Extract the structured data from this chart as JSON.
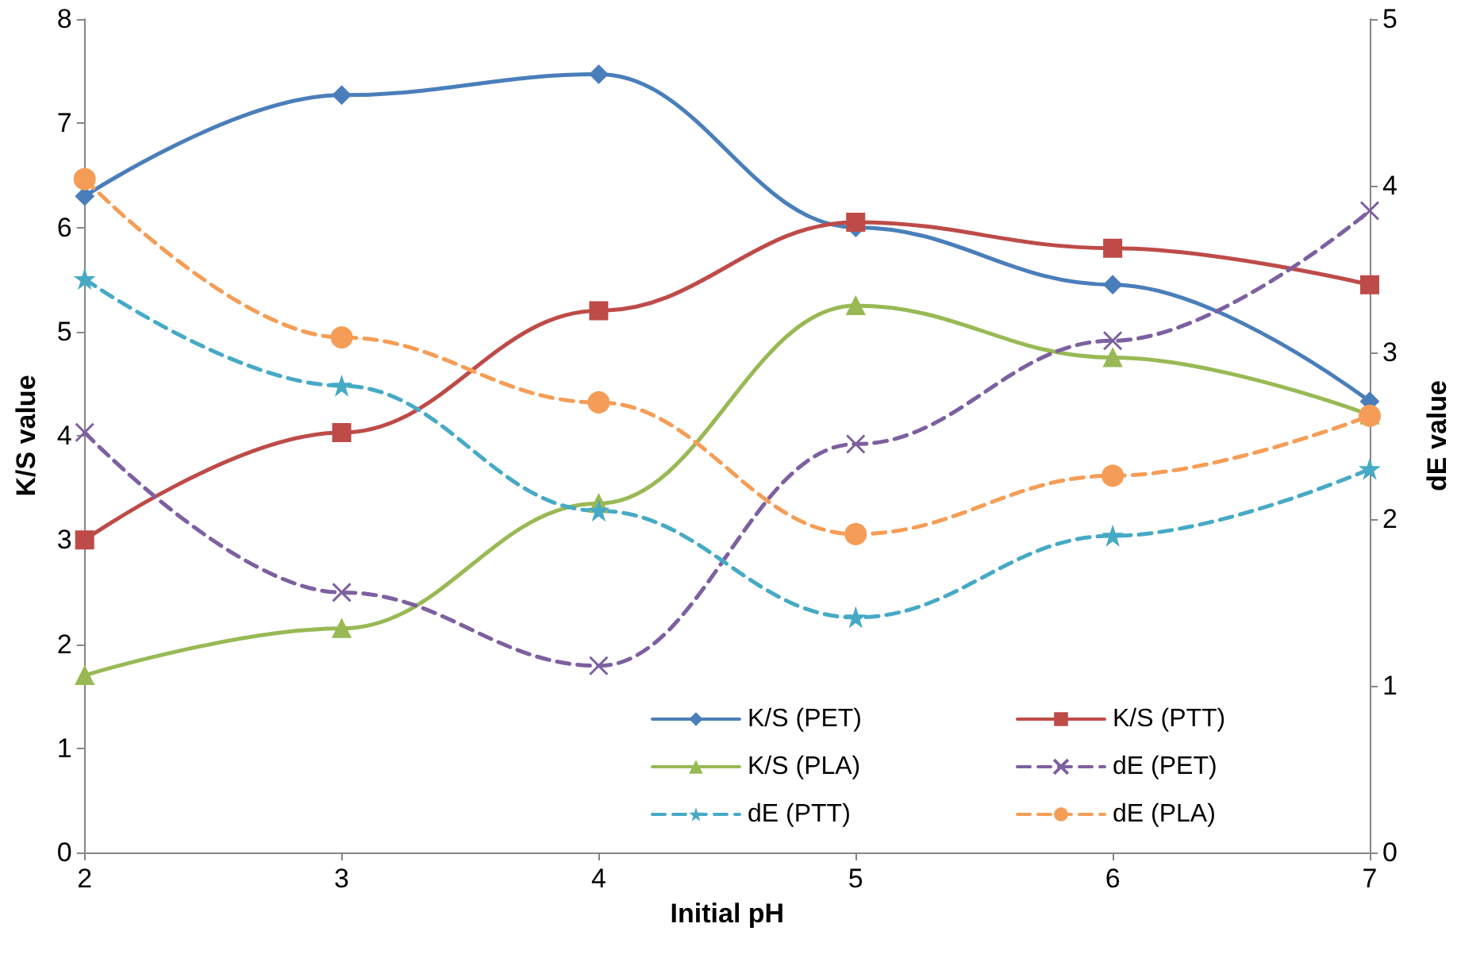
{
  "chart_data": {
    "type": "line",
    "xlabel": "Initial pH",
    "ylabel": "K/S value",
    "y2label": "dE value",
    "x": [
      2,
      3,
      4,
      5,
      6,
      7
    ],
    "series": [
      {
        "name": "K/S (PET)",
        "color": "#4a7ebb",
        "marker": "diamond",
        "line_style": "solid",
        "values": [
          6.3,
          7.27,
          7.47,
          6.0,
          5.45,
          4.33
        ]
      },
      {
        "name": "K/S (PTT)",
        "color": "#be4b48",
        "marker": "square",
        "line_style": "solid",
        "values": [
          3.0,
          4.03,
          5.2,
          6.05,
          5.8,
          5.45
        ]
      },
      {
        "name": "K/S (PLA)",
        "color": "#98b954",
        "marker": "triangle",
        "line_style": "solid",
        "values": [
          1.7,
          2.15,
          3.35,
          5.25,
          4.75,
          4.2
        ]
      },
      {
        "name": "dE (PET)",
        "color": "#7d60a0",
        "marker": "cross",
        "line_style": "dashed",
        "axis": "y2",
        "values": [
          2.52,
          1.56,
          1.12,
          2.45,
          3.07,
          3.85
        ]
      },
      {
        "name": "dE (PTT)",
        "color": "#46aac5",
        "marker": "star",
        "line_style": "dashed",
        "axis": "y2",
        "values": [
          3.44,
          2.8,
          2.05,
          1.41,
          1.9,
          2.3
        ]
      },
      {
        "name": "dE (PLA)",
        "color": "#f59d56",
        "marker": "circle",
        "line_style": "dashed",
        "axis": "y2",
        "values": [
          4.04,
          3.09,
          2.7,
          1.91,
          2.26,
          2.62
        ]
      }
    ],
    "xlim": [
      2,
      7
    ],
    "xticks": [
      2,
      3,
      4,
      5,
      6,
      7
    ],
    "ylim": [
      0,
      8
    ],
    "yticks": [
      0,
      1,
      2,
      3,
      4,
      5,
      6,
      7,
      8
    ],
    "y2lim": [
      0,
      5
    ],
    "y2ticks": [
      0,
      1,
      2,
      3,
      4,
      5
    ],
    "grid": false,
    "legend": "bottom right"
  }
}
